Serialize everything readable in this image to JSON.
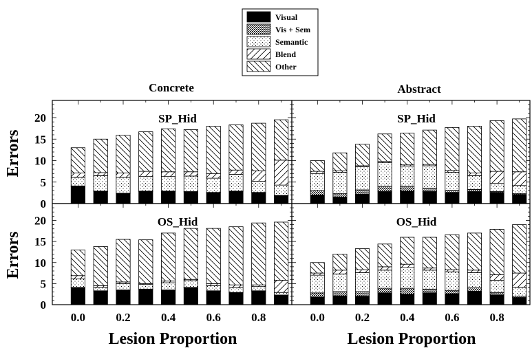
{
  "chart_data": {
    "type": "bar",
    "stacked": true,
    "xlabel": "Lesion Proportion",
    "ylabel": "Errors",
    "ylim": [
      0,
      24
    ],
    "yticks": [
      0,
      5,
      10,
      15,
      20
    ],
    "xticks": [
      "0.0",
      "0.2",
      "0.4",
      "0.6",
      "0.8"
    ],
    "categories": [
      0.0,
      0.1,
      0.2,
      0.3,
      0.4,
      0.5,
      0.6,
      0.7,
      0.8,
      0.9
    ],
    "column_titles": [
      "Concrete",
      "Abstract"
    ],
    "legend": {
      "placement": "top-center",
      "entries": [
        {
          "label": "Visual",
          "pattern": "solid-black"
        },
        {
          "label": "Vis + Sem",
          "pattern": "dense-dots"
        },
        {
          "label": "Semantic",
          "pattern": "sparse-dots"
        },
        {
          "label": "Blend",
          "pattern": "hatch-up"
        },
        {
          "label": "Other",
          "pattern": "hatch-down"
        }
      ]
    },
    "panels": [
      {
        "row_title": "SP_Hid",
        "column": "Concrete",
        "series": [
          {
            "name": "Visual",
            "values": [
              4.0,
              2.8,
              2.3,
              2.8,
              2.8,
              2.7,
              2.5,
              2.8,
              2.5,
              1.8
            ]
          },
          {
            "name": "Vis + Sem",
            "values": [
              0.1,
              0.1,
              0.1,
              0.1,
              0.1,
              0.1,
              0.1,
              0.1,
              0.1,
              0.1
            ]
          },
          {
            "name": "Semantic",
            "values": [
              2.0,
              3.6,
              3.7,
              3.4,
              3.4,
              3.6,
              3.3,
              3.9,
              2.6,
              2.4
            ]
          },
          {
            "name": "Blend",
            "values": [
              1.0,
              0.7,
              1.0,
              1.2,
              1.1,
              1.0,
              1.1,
              1.0,
              2.4,
              5.8
            ]
          },
          {
            "name": "Other",
            "values": [
              5.9,
              7.8,
              8.8,
              9.2,
              10.0,
              9.8,
              11.0,
              10.5,
              11.1,
              9.4
            ]
          }
        ]
      },
      {
        "row_title": "SP_Hid",
        "column": "Abstract",
        "series": [
          {
            "name": "Visual",
            "values": [
              2.0,
              1.5,
              2.2,
              2.8,
              2.9,
              2.8,
              2.6,
              2.8,
              2.6,
              2.1
            ]
          },
          {
            "name": "Vis + Sem",
            "values": [
              1.0,
              0.8,
              1.0,
              1.2,
              1.1,
              0.8,
              0.5,
              0.5,
              0.2,
              0.2
            ]
          },
          {
            "name": "Semantic",
            "values": [
              4.0,
              5.0,
              5.4,
              5.5,
              4.7,
              5.2,
              4.2,
              3.2,
              1.9,
              1.9
            ]
          },
          {
            "name": "Blend",
            "values": [
              0.5,
              0.3,
              0.2,
              0.3,
              0.3,
              0.3,
              0.4,
              0.6,
              2.8,
              3.2
            ]
          },
          {
            "name": "Other",
            "values": [
              2.5,
              4.2,
              5.0,
              6.4,
              7.4,
              8.0,
              10.0,
              10.9,
              11.8,
              12.3
            ]
          }
        ]
      },
      {
        "row_title": "OS_Hid",
        "column": "Concrete",
        "series": [
          {
            "name": "Visual",
            "values": [
              4.0,
              3.2,
              3.4,
              3.6,
              3.4,
              4.0,
              3.2,
              2.8,
              3.2,
              2.2
            ]
          },
          {
            "name": "Vis + Sem",
            "values": [
              0.1,
              0.1,
              0.1,
              0.1,
              0.1,
              0.1,
              0.1,
              0.1,
              0.1,
              0.1
            ]
          },
          {
            "name": "Semantic",
            "values": [
              2.0,
              0.8,
              1.5,
              1.1,
              1.7,
              1.6,
              1.2,
              1.1,
              1.0,
              0.6
            ]
          },
          {
            "name": "Blend",
            "values": [
              0.8,
              0.4,
              0.4,
              0.2,
              0.4,
              0.3,
              0.5,
              0.7,
              0.4,
              2.9
            ]
          },
          {
            "name": "Other",
            "values": [
              6.1,
              9.3,
              10.1,
              10.4,
              11.4,
              12.1,
              13.1,
              13.8,
              14.7,
              13.8
            ]
          }
        ]
      },
      {
        "row_title": "OS_Hid",
        "column": "Abstract",
        "series": [
          {
            "name": "Visual",
            "values": [
              1.8,
              2.1,
              2.0,
              2.8,
              2.5,
              2.8,
              2.6,
              3.2,
              2.3,
              1.7
            ]
          },
          {
            "name": "Vis + Sem",
            "values": [
              1.0,
              1.0,
              1.1,
              1.1,
              1.4,
              0.9,
              0.8,
              0.8,
              0.6,
              0.3
            ]
          },
          {
            "name": "Semantic",
            "values": [
              4.2,
              4.2,
              4.5,
              4.3,
              4.9,
              4.5,
              4.4,
              3.6,
              2.9,
              2.1
            ]
          },
          {
            "name": "Blend",
            "values": [
              0.5,
              0.9,
              0.7,
              0.8,
              0.8,
              0.5,
              0.5,
              0.6,
              1.3,
              3.4
            ]
          },
          {
            "name": "Other",
            "values": [
              2.5,
              3.8,
              5.0,
              5.4,
              6.4,
              7.3,
              8.3,
              8.8,
              10.8,
              11.5
            ]
          }
        ]
      }
    ]
  }
}
